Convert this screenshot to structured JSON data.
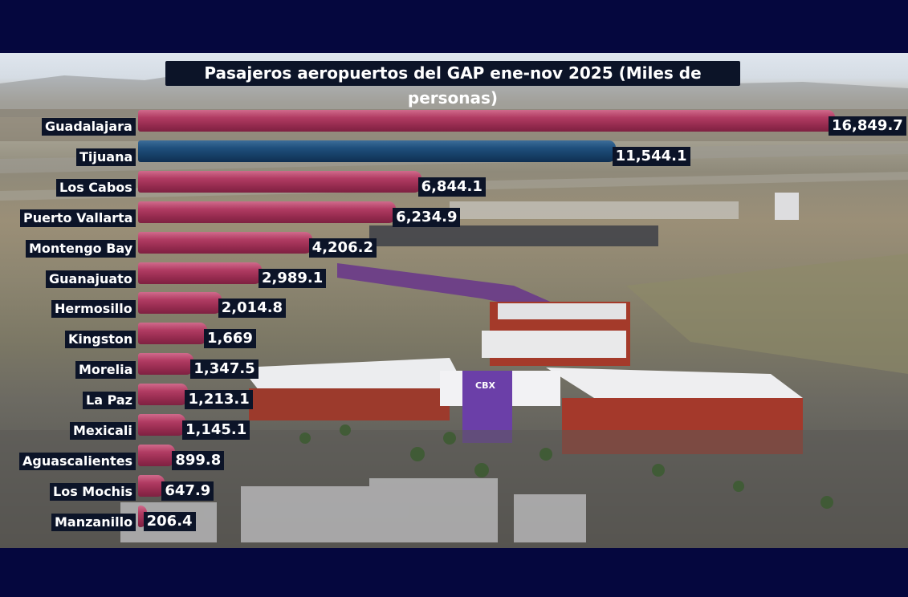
{
  "chart_data": {
    "type": "bar",
    "orientation": "horizontal",
    "title": "Pasajeros aeropuertos del GAP ene-nov 2025 (Miles de personas)",
    "categories": [
      "Guadalajara",
      "Tijuana",
      "Los Cabos",
      "Puerto Vallarta",
      "Montengo Bay",
      "Guanajuato",
      "Hermosillo",
      "Kingston",
      "Morelia",
      "La Paz",
      "Mexicali",
      "Aguascalientes",
      "Los Mochis",
      "Manzanillo"
    ],
    "values": [
      16849.7,
      11544.1,
      6844.1,
      6234.9,
      4206.2,
      2989.1,
      2014.8,
      1669,
      1347.5,
      1213.1,
      1145.1,
      899.8,
      647.9,
      206.4
    ],
    "value_labels": [
      "16,849.7",
      "11,544.1",
      "6,844.1",
      "6,234.9",
      "4,206.2",
      "2,989.1",
      "2,014.8",
      "1,669",
      "1,347.5",
      "1,213.1",
      "1,145.1",
      "899.8",
      "647.9",
      "206.4"
    ],
    "highlight_category": "Tijuana",
    "colors": {
      "default": "#a8345a",
      "highlight": "#1c4a75",
      "label_bg": "#0c1428"
    },
    "xlim": [
      0,
      16849.7
    ],
    "grid": false,
    "legend": "none"
  }
}
